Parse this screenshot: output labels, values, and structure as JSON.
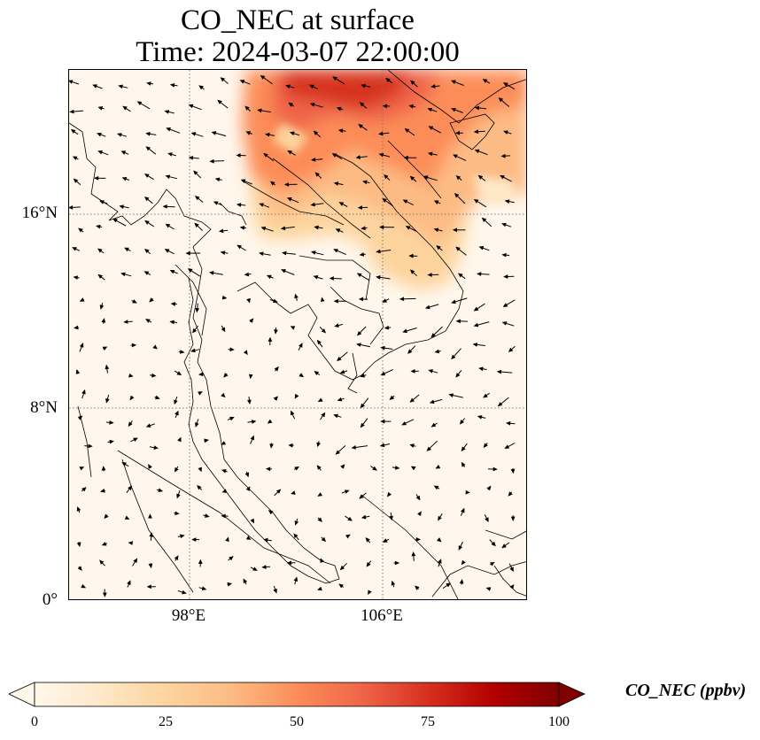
{
  "title": {
    "line1": "CO_NEC at surface",
    "line2": "Time: 2024-03-07 22:00:00"
  },
  "map": {
    "lat_ticks": [
      "16°N",
      "8°N",
      "0°"
    ],
    "lon_ticks": [
      "98°E",
      "106°E"
    ],
    "gridlines": "dotted",
    "extent": {
      "lon": [
        93,
        112
      ],
      "lat": [
        0,
        22
      ]
    },
    "feature": "CO_NEC concentration with surface wind vectors",
    "high_concentration_region": "northern Thailand, Laos, northern Vietnam and southern China"
  },
  "colorbar": {
    "label": "CO_NEC (ppbv)",
    "ticks": [
      "0",
      "25",
      "50",
      "75",
      "100"
    ],
    "min": 0,
    "max": 100,
    "colormap": "OrRd",
    "colors": [
      "#fff7ec",
      "#fee8c8",
      "#fdd49e",
      "#fdbb84",
      "#fc8d59",
      "#ef6548",
      "#d7301f",
      "#b30000",
      "#7f0000"
    ],
    "extend": "both"
  }
}
